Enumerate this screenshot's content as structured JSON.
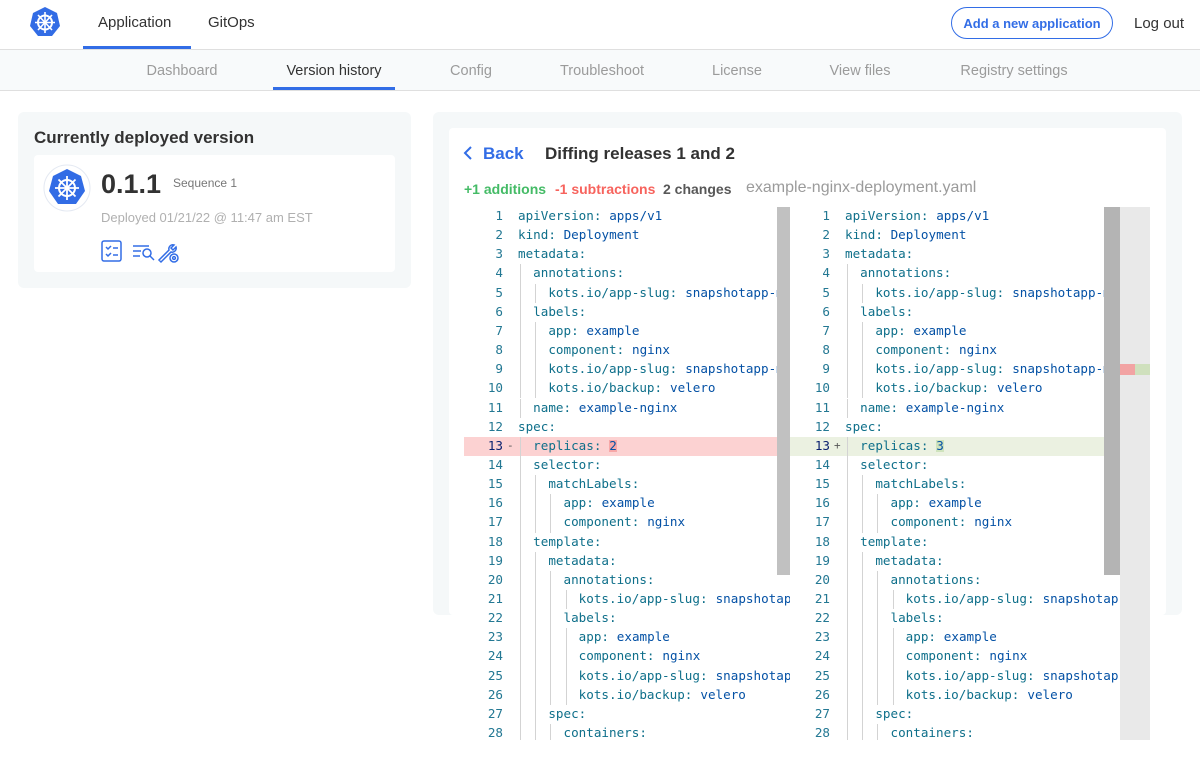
{
  "header": {
    "tabs": [
      "Application",
      "GitOps"
    ],
    "active_tab": 0,
    "add_button": "Add a new application",
    "logout": "Log out"
  },
  "subnav": {
    "items": [
      "Dashboard",
      "Version history",
      "Config",
      "Troubleshoot",
      "License",
      "View files",
      "Registry settings"
    ],
    "active_index": 1
  },
  "deployed": {
    "title": "Currently deployed version",
    "version": "0.1.1",
    "sequence": "Sequence 1",
    "date": "Deployed 01/21/22 @ 11:47 am EST"
  },
  "diff": {
    "back": "Back",
    "title": "Diffing releases 1 and 2",
    "additions": "+1 additions",
    "subtractions": "-1 subtractions",
    "changes": "2 changes",
    "file": "example-nginx-deployment.yaml",
    "left": {
      "lines": [
        {
          "number": 1,
          "key": "apiVersion:",
          "value": "apps/v1"
        },
        {
          "number": 2,
          "key": "kind:",
          "value": "Deployment"
        },
        {
          "number": 3,
          "key": "metadata:"
        },
        {
          "number": 4,
          "key": "  annotations:"
        },
        {
          "number": 5,
          "key": "    kots.io/app-slug:",
          "value": "snapshotapp-mu"
        },
        {
          "number": 6,
          "key": "  labels:"
        },
        {
          "number": 7,
          "key": "    app:",
          "value": "example"
        },
        {
          "number": 8,
          "key": "    component:",
          "value": "nginx"
        },
        {
          "number": 9,
          "key": "    kots.io/app-slug:",
          "value": "snapshotapp-mu"
        },
        {
          "number": 10,
          "key": "    kots.io/backup:",
          "value": "velero"
        },
        {
          "number": 11,
          "key": "  name:",
          "value": "example-nginx"
        },
        {
          "number": 12,
          "key": "spec:"
        },
        {
          "number": 13,
          "marker": "-",
          "status": "removed",
          "key": "  replicas:",
          "value": "2"
        },
        {
          "number": 14,
          "key": "  selector:"
        },
        {
          "number": 15,
          "key": "    matchLabels:"
        },
        {
          "number": 16,
          "key": "      app:",
          "value": "example"
        },
        {
          "number": 17,
          "key": "      component:",
          "value": "nginx"
        },
        {
          "number": 18,
          "key": "  template:"
        },
        {
          "number": 19,
          "key": "    metadata:"
        },
        {
          "number": 20,
          "key": "      annotations:"
        },
        {
          "number": 21,
          "key": "        kots.io/app-slug:",
          "value": "snapshotap"
        },
        {
          "number": 22,
          "key": "      labels:"
        },
        {
          "number": 23,
          "key": "        app:",
          "value": "example"
        },
        {
          "number": 24,
          "key": "        component:",
          "value": "nginx"
        },
        {
          "number": 25,
          "key": "        kots.io/app-slug:",
          "value": "snapshotap"
        },
        {
          "number": 26,
          "key": "        kots.io/backup:",
          "value": "velero"
        },
        {
          "number": 27,
          "key": "    spec:"
        },
        {
          "number": 28,
          "key": "      containers:"
        }
      ]
    },
    "right": {
      "lines": [
        {
          "number": 1,
          "key": "apiVersion:",
          "value": "apps/v1"
        },
        {
          "number": 2,
          "key": "kind:",
          "value": "Deployment"
        },
        {
          "number": 3,
          "key": "metadata:"
        },
        {
          "number": 4,
          "key": "  annotations:"
        },
        {
          "number": 5,
          "key": "    kots.io/app-slug:",
          "value": "snapshotapp-mu"
        },
        {
          "number": 6,
          "key": "  labels:"
        },
        {
          "number": 7,
          "key": "    app:",
          "value": "example"
        },
        {
          "number": 8,
          "key": "    component:",
          "value": "nginx"
        },
        {
          "number": 9,
          "key": "    kots.io/app-slug:",
          "value": "snapshotapp-mu"
        },
        {
          "number": 10,
          "key": "    kots.io/backup:",
          "value": "velero"
        },
        {
          "number": 11,
          "key": "  name:",
          "value": "example-nginx"
        },
        {
          "number": 12,
          "key": "spec:"
        },
        {
          "number": 13,
          "marker": "+",
          "status": "added",
          "key": "  replicas:",
          "value": "3"
        },
        {
          "number": 14,
          "key": "  selector:"
        },
        {
          "number": 15,
          "key": "    matchLabels:"
        },
        {
          "number": 16,
          "key": "      app:",
          "value": "example"
        },
        {
          "number": 17,
          "key": "      component:",
          "value": "nginx"
        },
        {
          "number": 18,
          "key": "  template:"
        },
        {
          "number": 19,
          "key": "    metadata:"
        },
        {
          "number": 20,
          "key": "      annotations:"
        },
        {
          "number": 21,
          "key": "        kots.io/app-slug:",
          "value": "snapshotap"
        },
        {
          "number": 22,
          "key": "      labels:"
        },
        {
          "number": 23,
          "key": "        app:",
          "value": "example"
        },
        {
          "number": 24,
          "key": "        component:",
          "value": "nginx"
        },
        {
          "number": 25,
          "key": "        kots.io/app-slug:",
          "value": "snapshotap"
        },
        {
          "number": 26,
          "key": "        kots.io/backup:",
          "value": "velero"
        },
        {
          "number": 27,
          "key": "    spec:"
        },
        {
          "number": 28,
          "key": "      containers:"
        }
      ]
    }
  }
}
